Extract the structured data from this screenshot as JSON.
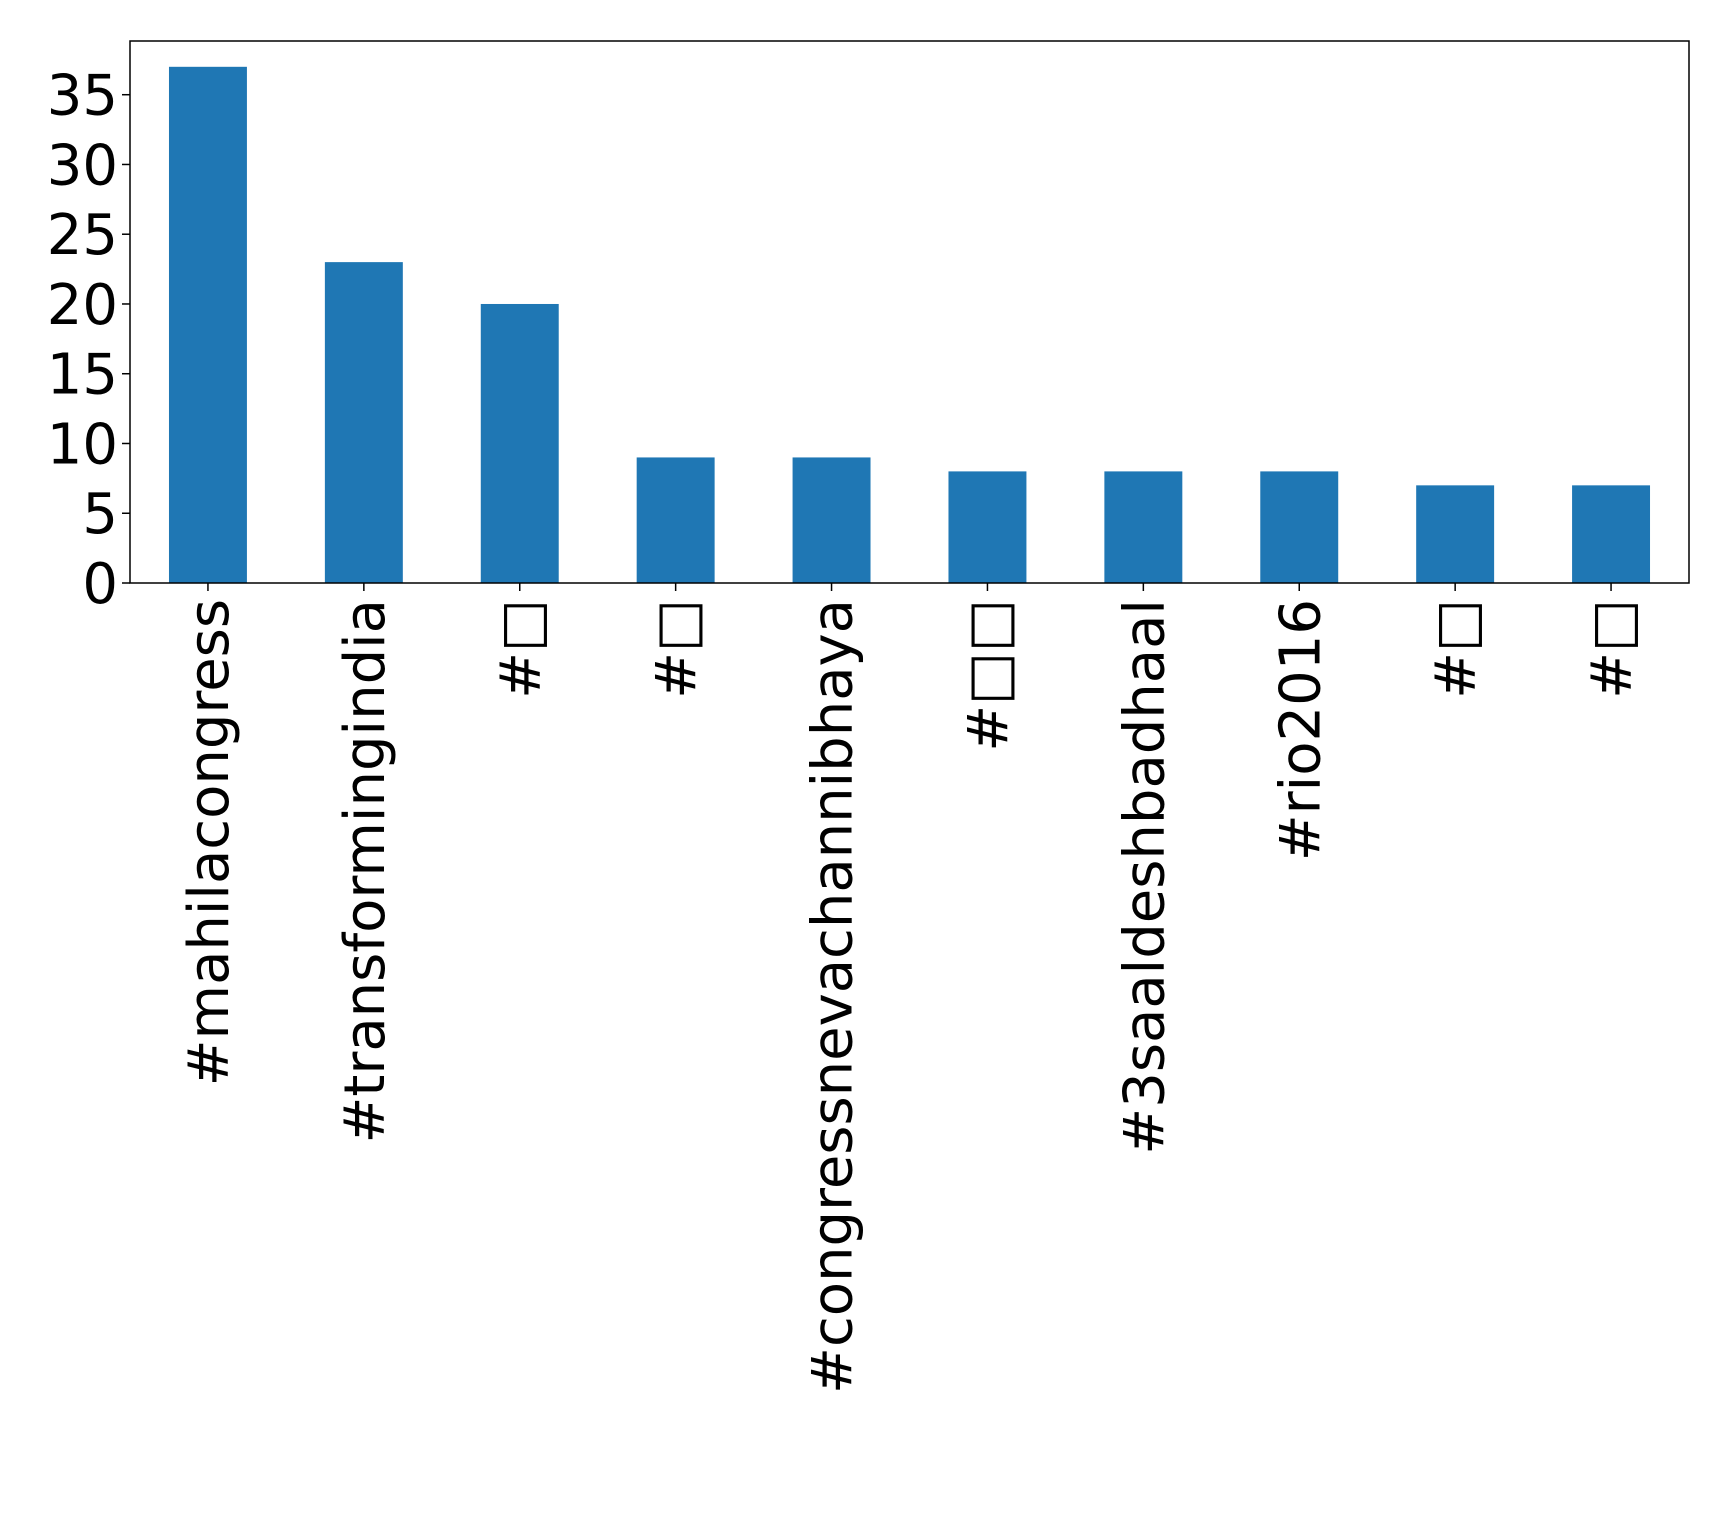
{
  "chart_data": {
    "type": "bar",
    "categories": [
      "#mahilacongress",
      "#transformingindia",
      "#□",
      "#□",
      "#congressnevachannibhaya",
      "#□□",
      "#3saaldeshbadhaal",
      "#rio2016",
      "#□",
      "#□"
    ],
    "values": [
      37,
      23,
      20,
      9,
      9,
      8,
      8,
      8,
      7,
      7
    ],
    "yticks": [
      0,
      5,
      10,
      15,
      20,
      25,
      30,
      35
    ],
    "ylim": [
      0,
      38.85
    ],
    "grid": false,
    "legend": "none",
    "bar_color": "#1f77b4"
  }
}
